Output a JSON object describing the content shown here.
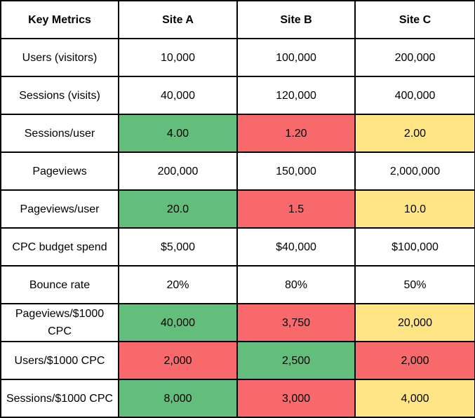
{
  "header": [
    "Key Metrics",
    "Site A",
    "Site B",
    "Site C"
  ],
  "colors": {
    "good": "#63be7b",
    "bad": "#f8696b",
    "mid": "#ffe584",
    "none": "#ffffff"
  },
  "rows": [
    {
      "metric": "Users (visitors)",
      "values": [
        "10,000",
        "100,000",
        "200,000"
      ],
      "status": [
        "none",
        "none",
        "none"
      ]
    },
    {
      "metric": "Sessions (visits)",
      "values": [
        "40,000",
        "120,000",
        "400,000"
      ],
      "status": [
        "none",
        "none",
        "none"
      ]
    },
    {
      "metric": "Sessions/user",
      "values": [
        "4.00",
        "1.20",
        "2.00"
      ],
      "status": [
        "good",
        "bad",
        "mid"
      ]
    },
    {
      "metric": "Pageviews",
      "values": [
        "200,000",
        "150,000",
        "2,000,000"
      ],
      "status": [
        "none",
        "none",
        "none"
      ]
    },
    {
      "metric": "Pageviews/user",
      "values": [
        "20.0",
        "1.5",
        "10.0"
      ],
      "status": [
        "good",
        "bad",
        "mid"
      ]
    },
    {
      "metric": "CPC budget spend",
      "values": [
        "$5,000",
        "$40,000",
        "$100,000"
      ],
      "status": [
        "none",
        "none",
        "none"
      ]
    },
    {
      "metric": "Bounce rate",
      "values": [
        "20%",
        "80%",
        "50%"
      ],
      "status": [
        "none",
        "none",
        "none"
      ]
    },
    {
      "metric": "Pageviews/$1000 CPC",
      "values": [
        "40,000",
        "3,750",
        "20,000"
      ],
      "status": [
        "good",
        "bad",
        "mid"
      ]
    },
    {
      "metric": "Users/$1000 CPC",
      "values": [
        "2,000",
        "2,500",
        "2,000"
      ],
      "status": [
        "bad",
        "good",
        "bad"
      ]
    },
    {
      "metric": "Sessions/$1000 CPC",
      "values": [
        "8,000",
        "3,000",
        "4,000"
      ],
      "status": [
        "good",
        "bad",
        "mid"
      ]
    }
  ]
}
